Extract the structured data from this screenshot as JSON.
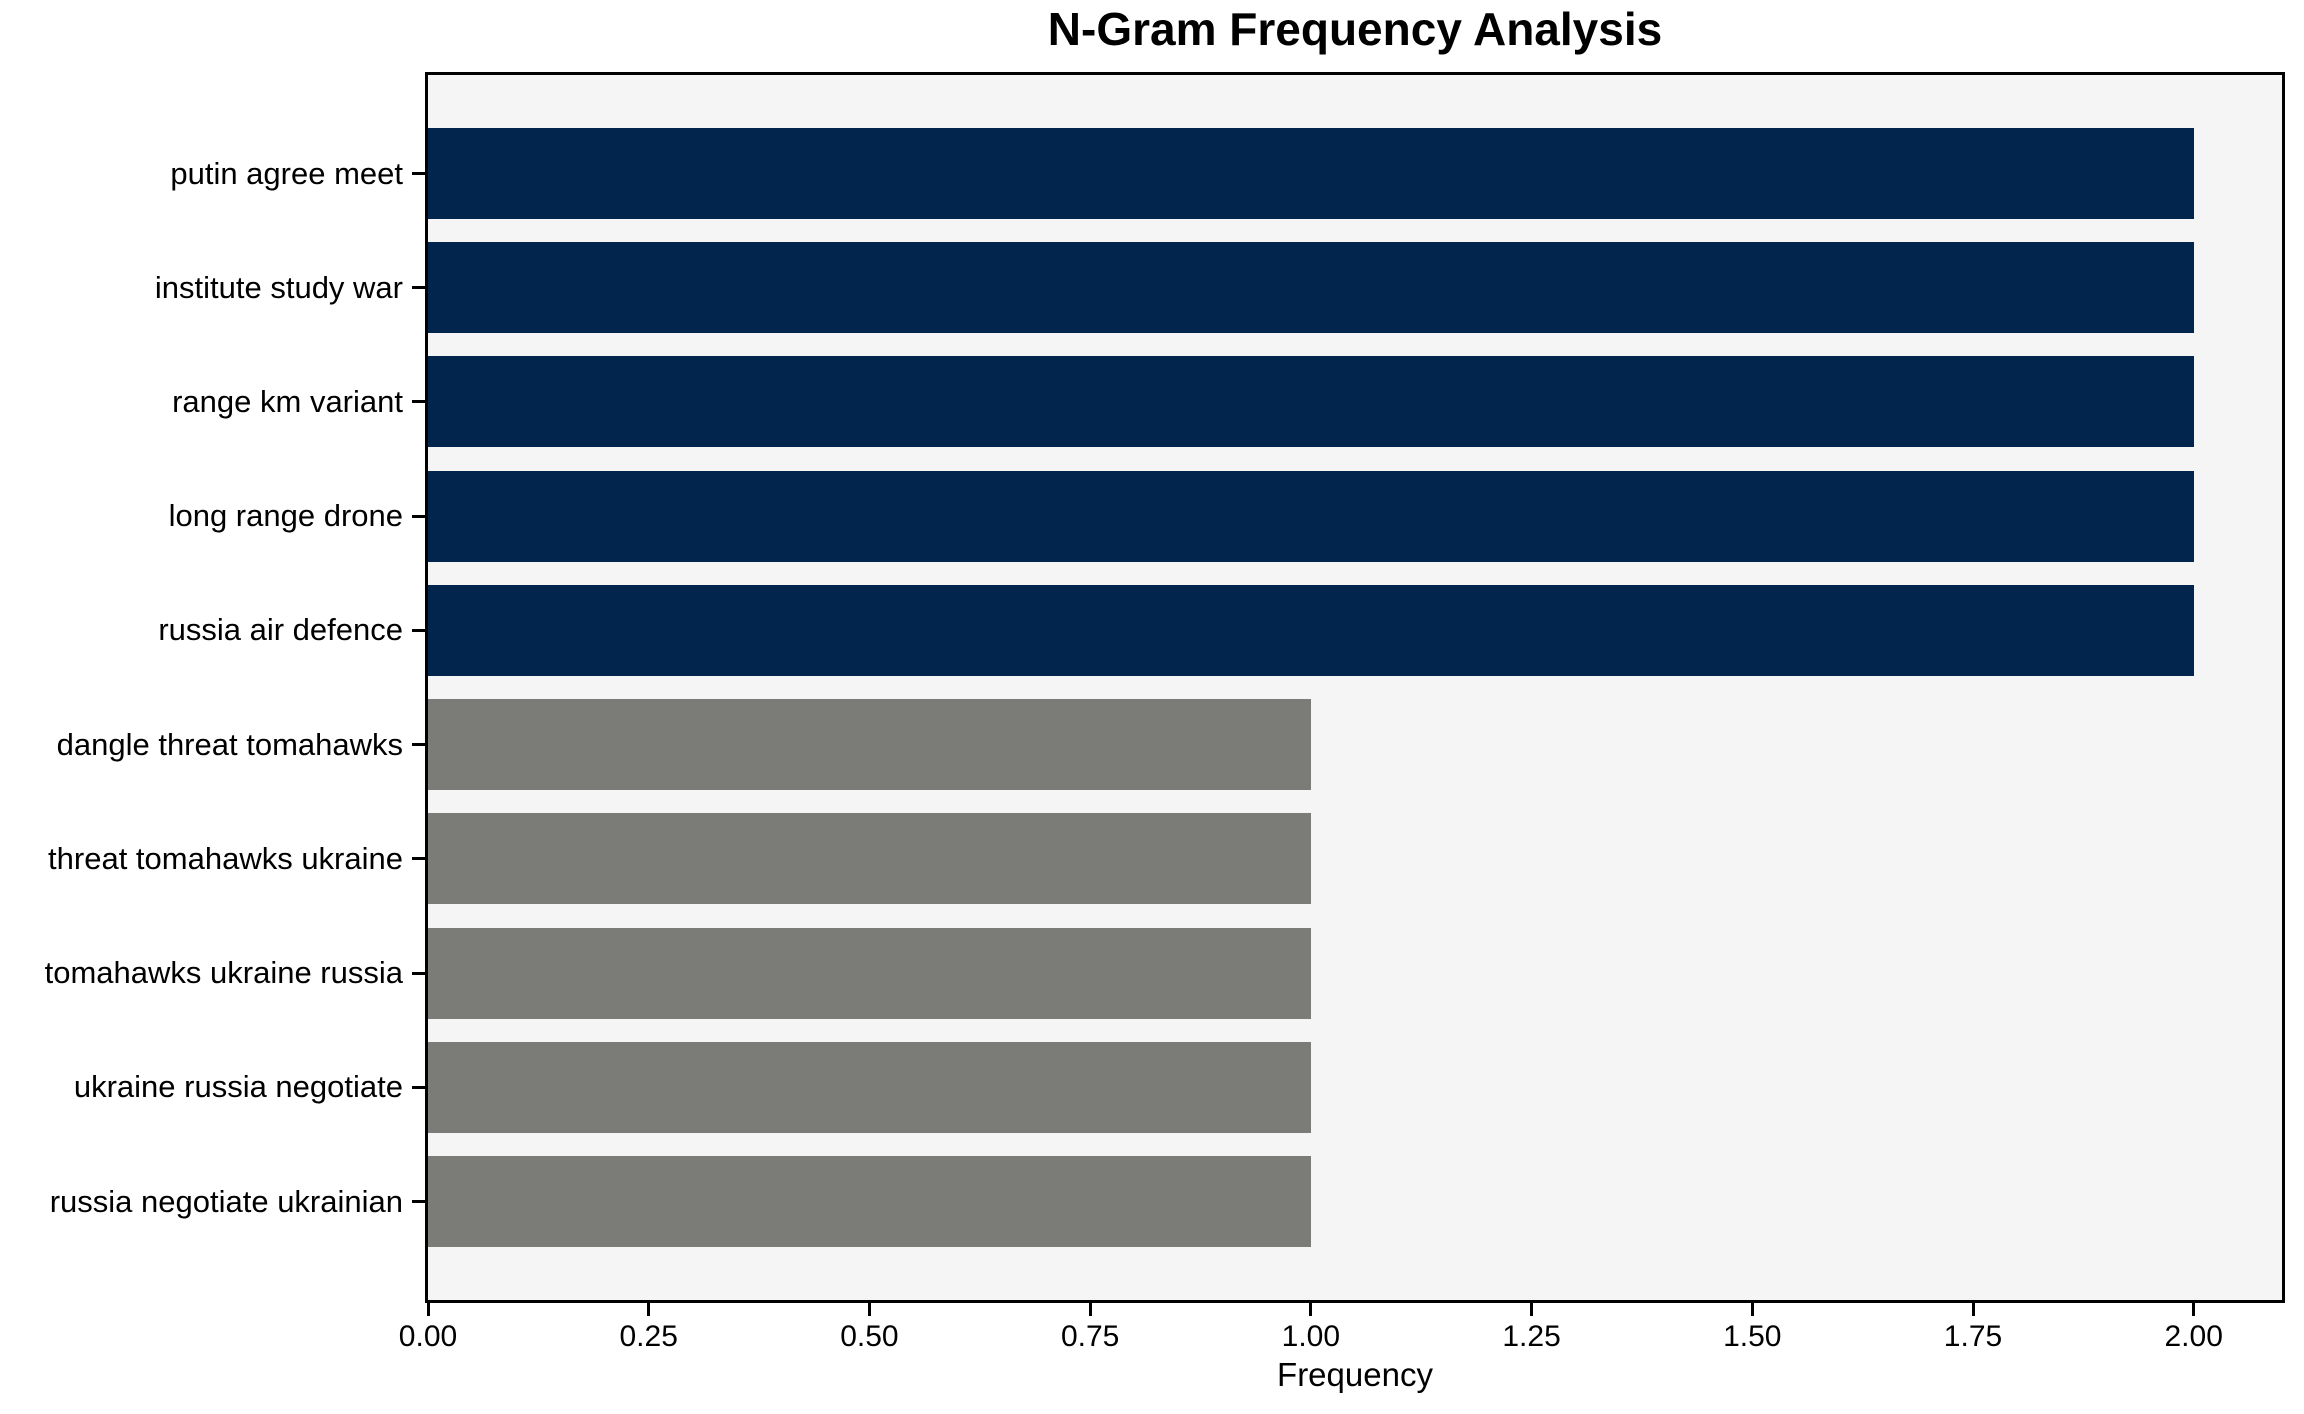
{
  "title": "N-Gram Frequency Analysis",
  "chart_data": {
    "type": "bar",
    "orientation": "horizontal",
    "title": "N-Gram Frequency Analysis",
    "xlabel": "Frequency",
    "ylabel": "",
    "categories": [
      "putin agree meet",
      "institute study war",
      "range km variant",
      "long range drone",
      "russia air defence",
      "dangle threat tomahawks",
      "threat tomahawks ukraine",
      "tomahawks ukraine russia",
      "ukraine russia negotiate",
      "russia negotiate ukrainian"
    ],
    "values": [
      2,
      2,
      2,
      2,
      2,
      1,
      1,
      1,
      1,
      1
    ],
    "bar_colors": [
      "#02254d",
      "#02254d",
      "#02254d",
      "#02254d",
      "#02254d",
      "#7b7b78",
      "#7b7b78",
      "#7b7b78",
      "#7b7b78",
      "#7b7b78"
    ],
    "xlim": [
      0,
      2.1
    ],
    "xticks": [
      {
        "value": 0.0,
        "label": "0.00"
      },
      {
        "value": 0.25,
        "label": "0.25"
      },
      {
        "value": 0.5,
        "label": "0.50"
      },
      {
        "value": 0.75,
        "label": "0.75"
      },
      {
        "value": 1.0,
        "label": "1.00"
      },
      {
        "value": 1.25,
        "label": "1.25"
      },
      {
        "value": 1.5,
        "label": "1.50"
      },
      {
        "value": 1.75,
        "label": "1.75"
      },
      {
        "value": 2.0,
        "label": "2.00"
      }
    ],
    "grid": false,
    "legend": false,
    "colors": {
      "high_frequency_bar": "#02254d",
      "low_frequency_bar": "#7b7b78",
      "plot_background": "#f5f5f5",
      "figure_background": "#ffffff",
      "spine": "#000000",
      "text": "#000000"
    }
  }
}
